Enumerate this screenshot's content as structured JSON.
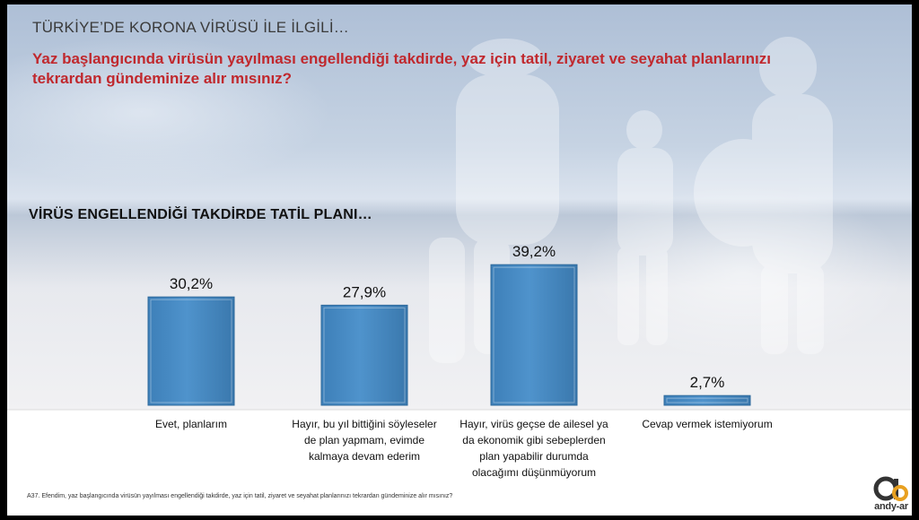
{
  "header": {
    "topic": "TÜRKİYE’DE KORONA VİRÜSÜ İLE İLGİLİ…",
    "question": "Yaz başlangıcında virüsün yayılması engellendiği takdirde, yaz için tatil, ziyaret ve seyahat planlarınızı tekrardan gündeminize alır mısınız?"
  },
  "colors": {
    "bar": "#4f93cc",
    "question": "#c0282d",
    "accent": "#e8a020"
  },
  "chart_data": {
    "type": "bar",
    "title": "VİRÜS ENGELLENDİĞİ TAKDİRDE TATİL PLANI…",
    "categories": [
      [
        "Evet, planlarım"
      ],
      [
        "Hayır, bu yıl bittiğini söyleseler",
        "de plan yapmam, evimde",
        "kalmaya devam ederim"
      ],
      [
        "Hayır, virüs geçse de ailesel ya",
        "da ekonomik gibi sebeplerden",
        "plan yapabilir durumda",
        "olacağımı düşünmüyorum"
      ],
      [
        "Cevap vermek istemiyorum"
      ]
    ],
    "values": [
      30.2,
      27.9,
      39.2,
      2.7
    ],
    "value_labels": [
      "30,2%",
      "27,9%",
      "39,2%",
      "2,7%"
    ],
    "ylim": [
      0,
      40
    ],
    "grid": false,
    "legend": "none"
  },
  "footnote": "A37. Efendim, yaz başlangıcında virüsün yayılması engellendiği takdirde, yaz için tatil, ziyaret ve seyahat planlarınızı tekrardan gündeminize alır mısınız?",
  "logo": {
    "text": "andy-ar"
  }
}
